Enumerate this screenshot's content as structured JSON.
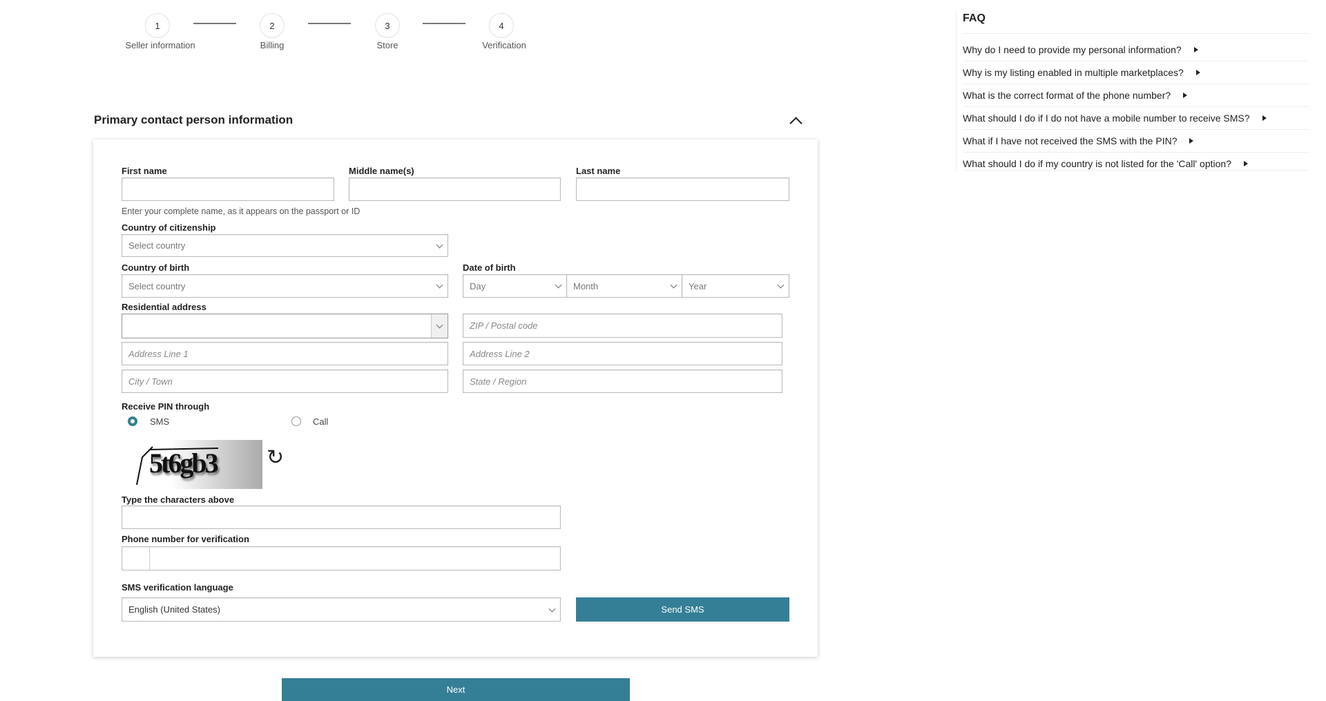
{
  "steps": [
    {
      "num": "1",
      "label": "Seller information"
    },
    {
      "num": "2",
      "label": "Billing"
    },
    {
      "num": "3",
      "label": "Store"
    },
    {
      "num": "4",
      "label": "Verification"
    }
  ],
  "section": {
    "title": "Primary contact person information",
    "collapse_icon": "chevron-up-icon"
  },
  "form": {
    "first_name": {
      "label": "First name",
      "value": ""
    },
    "middle_name": {
      "label": "Middle name(s)",
      "value": ""
    },
    "last_name": {
      "label": "Last name",
      "value": ""
    },
    "name_hint": "Enter your complete name, as it appears on the passport or ID",
    "citizenship": {
      "label": "Country of citizenship",
      "value": "Select country"
    },
    "birth_country": {
      "label": "Country of birth",
      "value": "Select country"
    },
    "dob": {
      "label": "Date of birth",
      "day": "Day",
      "month": "Month",
      "year": "Year"
    },
    "address": {
      "label": "Residential address",
      "country": "",
      "zip": "ZIP / Postal code",
      "line1": "Address Line 1",
      "line2": "Address Line 2",
      "city": "City / Town",
      "state": "State / Region"
    },
    "pin": {
      "label": "Receive PIN through",
      "options": [
        "SMS",
        "Call"
      ],
      "selected": "SMS"
    },
    "captcha": {
      "text": "5t6gb3",
      "refresh_icon": "refresh-icon"
    },
    "captcha_input": {
      "label": "Type the characters above",
      "value": ""
    },
    "phone": {
      "label": "Phone number for verification",
      "code": "",
      "value": ""
    },
    "sms_language": {
      "label": "SMS verification language",
      "value": "English (United States)"
    },
    "send_sms": "Send SMS"
  },
  "next": "Next",
  "faq": {
    "title": "FAQ",
    "items": [
      "Why do I need to provide my personal information?",
      "Why is my listing enabled in multiple marketplaces?",
      "What is the correct format of the phone number?",
      "What should I do if I do not have a mobile number to receive SMS?",
      "What if I have not received the SMS with the PIN?",
      "What should I do if my country is not listed for the 'Call' option?"
    ]
  },
  "colors": {
    "accent": "#357f96"
  }
}
